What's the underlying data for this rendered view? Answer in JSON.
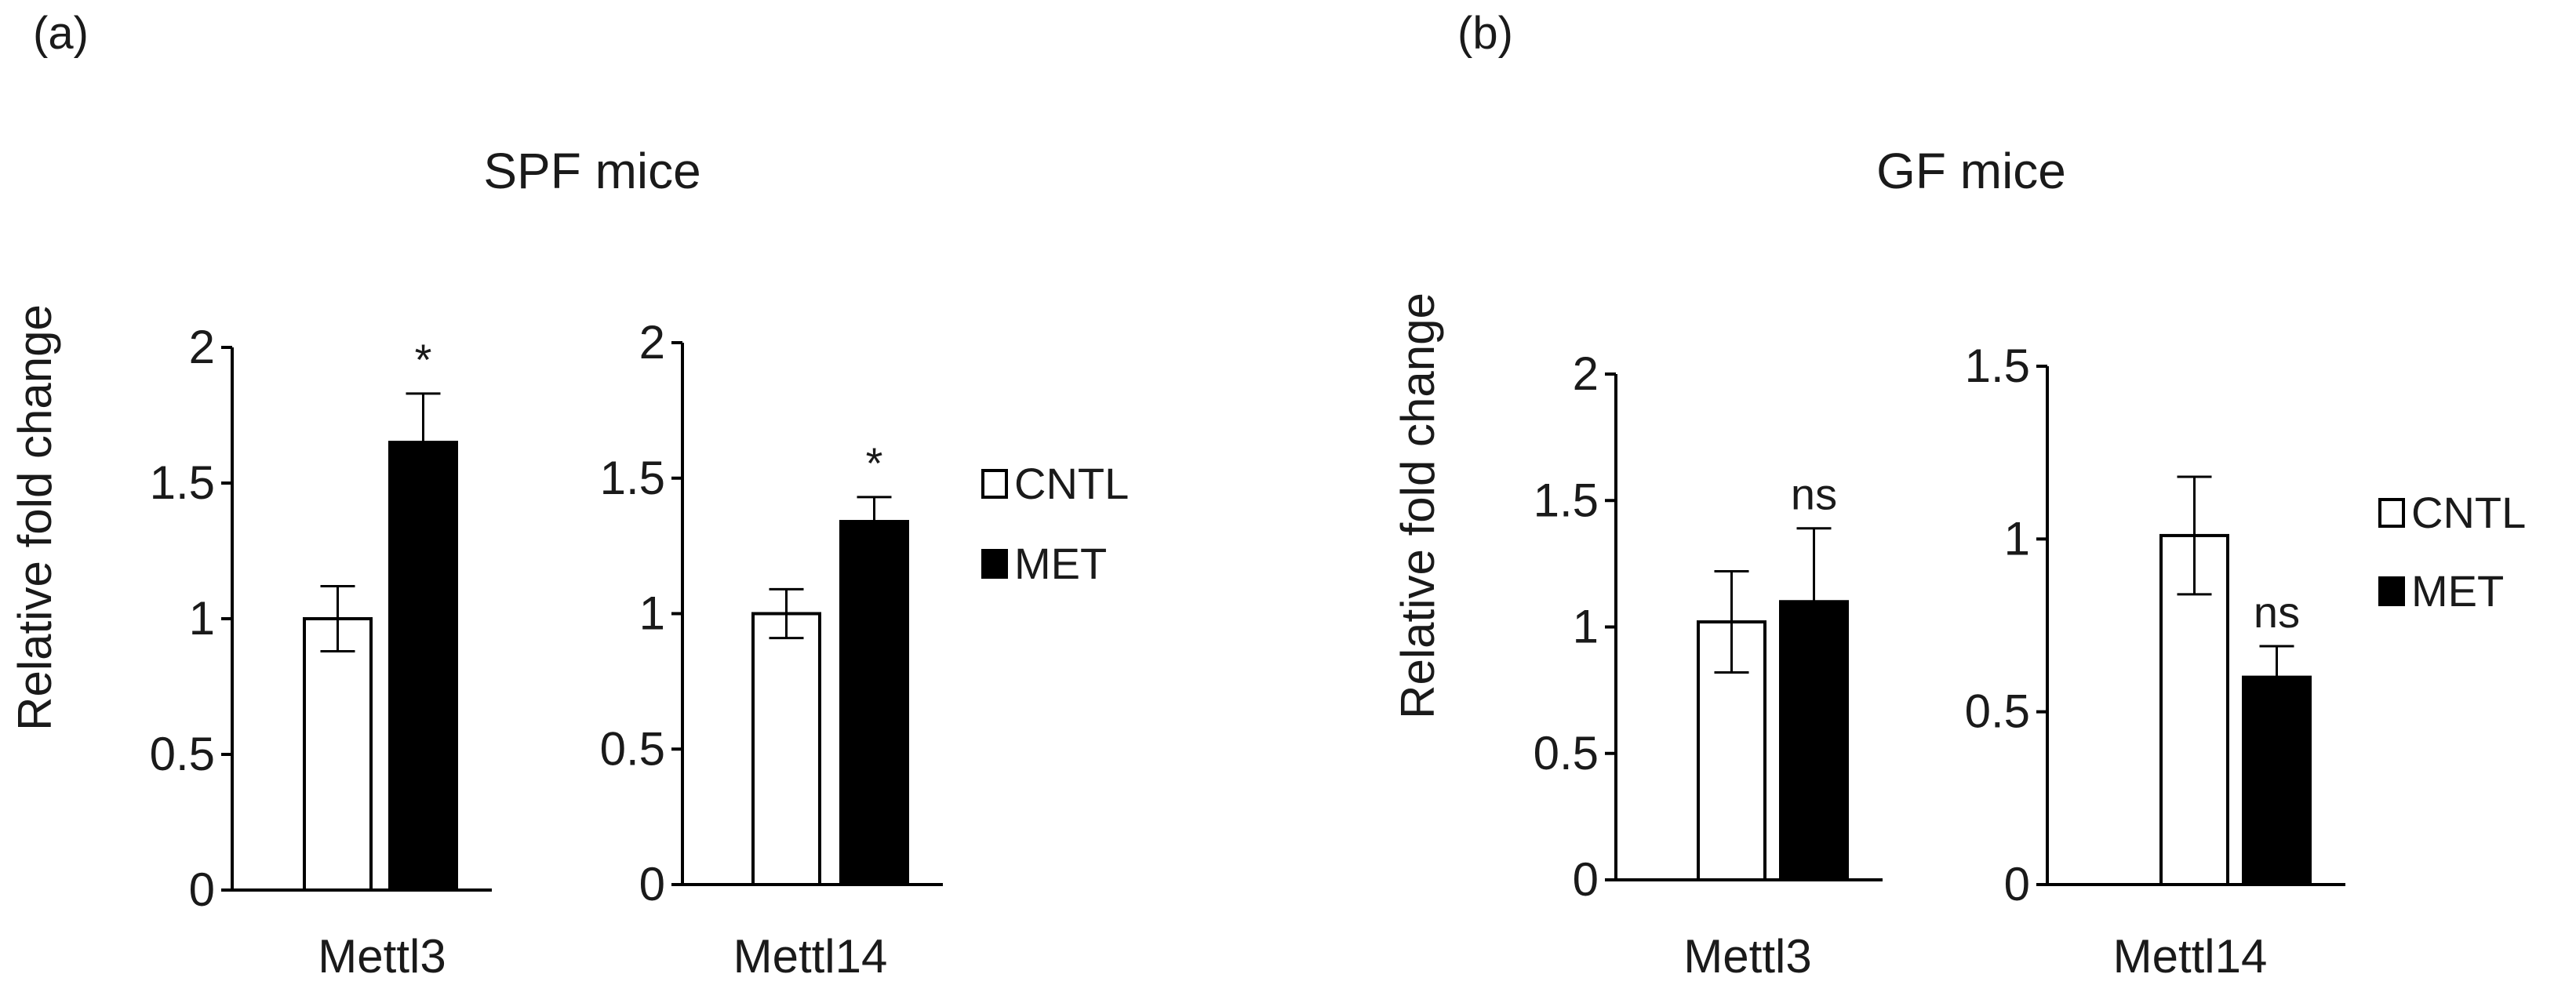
{
  "panels": [
    {
      "label": "(a)",
      "title": "SPF mice",
      "ylabel": "Relative fold change",
      "legend": {
        "items": [
          {
            "name": "CNTL",
            "color": "#ffffff"
          },
          {
            "name": "MET",
            "color": "#000000"
          }
        ]
      }
    },
    {
      "label": "(b)",
      "title": "GF mice",
      "ylabel": "Relative fold change",
      "legend": {
        "items": [
          {
            "name": "CNTL",
            "color": "#ffffff"
          },
          {
            "name": "MET",
            "color": "#000000"
          }
        ]
      }
    }
  ],
  "chart_data": [
    {
      "type": "bar",
      "panel": "(a)",
      "title": "SPF mice",
      "xlabel": "Mettl3",
      "ylabel": "Relative fold change",
      "ylim": [
        0,
        2
      ],
      "yticks": [
        0,
        0.5,
        1,
        1.5,
        2
      ],
      "ytick_labels": [
        "0",
        "0.5",
        "1",
        "1.5",
        "2"
      ],
      "series": [
        {
          "name": "CNTL",
          "color": "#ffffff",
          "values": [
            1.0
          ],
          "errors": [
            0.12
          ]
        },
        {
          "name": "MET",
          "color": "#000000",
          "values": [
            1.65
          ],
          "errors": [
            0.18
          ]
        }
      ],
      "annotation": "*"
    },
    {
      "type": "bar",
      "panel": "(a)",
      "title": "SPF mice",
      "xlabel": "Mettl14",
      "ylabel": "",
      "ylim": [
        0,
        2
      ],
      "yticks": [
        0,
        0.5,
        1,
        1.5,
        2
      ],
      "ytick_labels": [
        "0",
        "0.5",
        "1",
        "1.5",
        "2"
      ],
      "series": [
        {
          "name": "CNTL",
          "color": "#ffffff",
          "values": [
            1.0
          ],
          "errors": [
            0.09
          ]
        },
        {
          "name": "MET",
          "color": "#000000",
          "values": [
            1.34
          ],
          "errors": [
            0.09
          ]
        }
      ],
      "annotation": "*"
    },
    {
      "type": "bar",
      "panel": "(b)",
      "title": "GF mice",
      "xlabel": "Mettl3",
      "ylabel": "Relative fold change",
      "ylim": [
        0,
        2
      ],
      "yticks": [
        0,
        0.5,
        1,
        1.5,
        2
      ],
      "ytick_labels": [
        "0",
        "0.5",
        "1",
        "1.5",
        "2"
      ],
      "series": [
        {
          "name": "CNTL",
          "color": "#ffffff",
          "values": [
            1.02
          ],
          "errors": [
            0.2
          ]
        },
        {
          "name": "MET",
          "color": "#000000",
          "values": [
            1.1
          ],
          "errors": [
            0.29
          ]
        }
      ],
      "annotation": "ns"
    },
    {
      "type": "bar",
      "panel": "(b)",
      "title": "GF mice",
      "xlabel": "Mettl14",
      "ylabel": "",
      "ylim": [
        0,
        1.5
      ],
      "yticks": [
        0,
        0.5,
        1,
        1.5
      ],
      "ytick_labels": [
        "0",
        "0.5",
        "1",
        "1.5"
      ],
      "series": [
        {
          "name": "CNTL",
          "color": "#ffffff",
          "values": [
            1.01
          ],
          "errors": [
            0.17
          ]
        },
        {
          "name": "MET",
          "color": "#000000",
          "values": [
            0.6
          ],
          "errors": [
            0.09
          ]
        }
      ],
      "annotation": "ns"
    }
  ]
}
